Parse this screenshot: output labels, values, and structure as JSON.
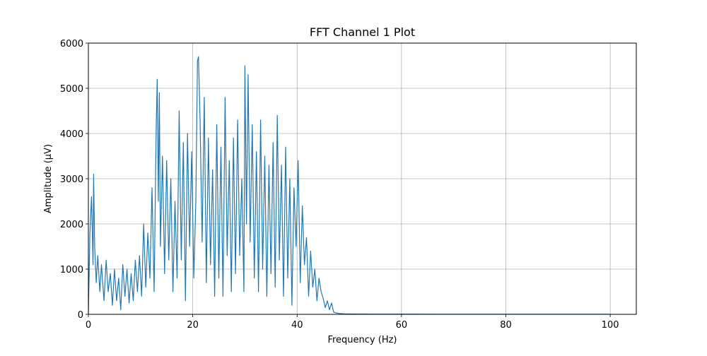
{
  "chart_data": {
    "type": "line",
    "title": "FFT Channel 1 Plot",
    "xlabel": "Frequency (Hz)",
    "ylabel": "Amplitude (µV)",
    "xlim": [
      0,
      105
    ],
    "ylim": [
      0,
      6000
    ],
    "xticks": [
      0,
      20,
      40,
      60,
      80,
      100
    ],
    "yticks": [
      0,
      1000,
      2000,
      3000,
      4000,
      5000,
      6000
    ],
    "grid": true,
    "line_color": "#1f77b4",
    "series": [
      {
        "x": [
          0,
          0.3,
          0.6,
          0.9,
          1.0,
          1.2,
          1.5,
          1.8,
          2.2,
          2.5,
          3.0,
          3.4,
          3.8,
          4.2,
          4.6,
          5.0,
          5.4,
          5.8,
          6.2,
          6.6,
          7.0,
          7.4,
          7.8,
          8.2,
          8.6,
          9.0,
          9.4,
          9.8,
          10.2,
          10.6,
          11.0,
          11.4,
          11.8,
          12.2,
          12.6,
          13.0,
          13.2,
          13.4,
          13.6,
          13.8,
          14.2,
          14.6,
          15.0,
          15.4,
          15.8,
          16.2,
          16.6,
          17.0,
          17.4,
          17.8,
          18.2,
          18.6,
          19.0,
          19.4,
          19.8,
          20.2,
          20.6,
          20.9,
          21.1,
          21.4,
          21.8,
          22.2,
          22.6,
          23.0,
          23.4,
          23.8,
          24.2,
          24.6,
          25.0,
          25.4,
          25.8,
          26.2,
          26.6,
          27.0,
          27.4,
          27.8,
          28.2,
          28.6,
          29.0,
          29.4,
          29.8,
          30.0,
          30.3,
          30.6,
          31.0,
          31.4,
          31.8,
          32.2,
          32.6,
          33.0,
          33.4,
          33.8,
          34.2,
          34.6,
          35.0,
          35.4,
          35.8,
          36.2,
          36.6,
          37.0,
          37.4,
          37.8,
          38.2,
          38.6,
          39.0,
          39.4,
          39.8,
          40.2,
          40.6,
          41.0,
          41.4,
          41.8,
          42.2,
          42.6,
          43.0,
          43.4,
          43.8,
          44.2,
          44.6,
          45.0,
          45.4,
          45.8,
          46.2,
          46.6,
          47.0,
          47.5,
          48.0,
          49.0,
          50.0,
          52.0,
          55.0,
          60.0,
          70.0,
          80.0,
          90.0,
          100.0
        ],
        "values": [
          0,
          1800,
          2600,
          1100,
          3100,
          1500,
          700,
          1300,
          500,
          1100,
          300,
          1200,
          500,
          900,
          200,
          1000,
          300,
          800,
          100,
          1100,
          400,
          1000,
          250,
          900,
          300,
          1200,
          500,
          1300,
          400,
          2000,
          600,
          1800,
          800,
          2800,
          500,
          4200,
          5200,
          2500,
          4900,
          1500,
          3500,
          900,
          3400,
          1200,
          3000,
          500,
          2500,
          800,
          4500,
          1200,
          3800,
          300,
          4000,
          1500,
          3600,
          800,
          2500,
          5600,
          5700,
          4300,
          1600,
          4800,
          700,
          3900,
          1100,
          3200,
          400,
          4200,
          800,
          3700,
          400,
          4800,
          1300,
          3400,
          500,
          3900,
          900,
          4300,
          1300,
          3000,
          500,
          5500,
          2000,
          5300,
          1600,
          4200,
          800,
          3600,
          500,
          4300,
          1000,
          3500,
          400,
          3300,
          900,
          3800,
          600,
          4400,
          1200,
          3300,
          400,
          3700,
          800,
          3000,
          200,
          2800,
          1500,
          3400,
          700,
          2400,
          1100,
          1700,
          400,
          1400,
          600,
          1000,
          300,
          800,
          500,
          350,
          150,
          300,
          100,
          250,
          50,
          30,
          20,
          10,
          8,
          6,
          5,
          4,
          3,
          2,
          2,
          2
        ]
      }
    ]
  }
}
